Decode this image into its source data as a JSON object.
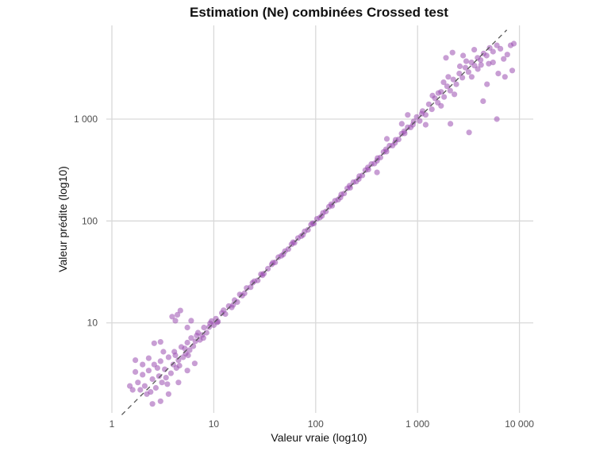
{
  "colors": {
    "point": "#9a4fb0",
    "identity_line": "#555555",
    "grid": "#d9d9d9",
    "text": "#111111",
    "tick_text": "#4d4d4d"
  },
  "chart_data": {
    "type": "scatter",
    "title": "Estimation (Ne) combinées Crossed test",
    "xlabel": "Valeur vraie (log10)",
    "ylabel": "Valeur prédite (log10)",
    "xscale": "log10",
    "yscale": "log10",
    "xlim": [
      1,
      10000
    ],
    "ylim": [
      1.5,
      10000
    ],
    "x_ticks": [
      1,
      10,
      100,
      1000,
      10000
    ],
    "x_tick_labels": [
      "1",
      "10",
      "100",
      "1 000",
      "10 000"
    ],
    "y_ticks": [
      10,
      100,
      1000
    ],
    "y_tick_labels": [
      "10",
      "100",
      "1 000"
    ],
    "grid": true,
    "legend": "none",
    "reference_line": {
      "label": "",
      "style": "dashed",
      "slope": 1,
      "intercept": 0
    },
    "series": [
      {
        "name": "",
        "point_alpha": 0.55,
        "points": [
          [
            1.6,
            2.2
          ],
          [
            1.8,
            2.6
          ],
          [
            2.0,
            3.1
          ],
          [
            2.1,
            2.4
          ],
          [
            2.2,
            2.0
          ],
          [
            2.3,
            3.4
          ],
          [
            2.5,
            2.8
          ],
          [
            2.6,
            3.9
          ],
          [
            2.7,
            2.3
          ],
          [
            2.9,
            3.0
          ],
          [
            3.0,
            4.2
          ],
          [
            3.1,
            2.6
          ],
          [
            3.3,
            3.5
          ],
          [
            3.4,
            2.9
          ],
          [
            3.6,
            4.6
          ],
          [
            3.8,
            3.2
          ],
          [
            4.0,
            3.9
          ],
          [
            4.1,
            5.2
          ],
          [
            4.3,
            3.6
          ],
          [
            4.5,
            4.3
          ],
          [
            4.8,
            5.8
          ],
          [
            5.0,
            4.6
          ],
          [
            5.3,
            5.0
          ],
          [
            5.5,
            6.4
          ],
          [
            5.8,
            5.4
          ],
          [
            6.0,
            7.1
          ],
          [
            6.3,
            5.9
          ],
          [
            6.6,
            6.6
          ],
          [
            7.0,
            8.0
          ],
          [
            7.3,
            6.8
          ],
          [
            7.7,
            7.6
          ],
          [
            8.0,
            9.0
          ],
          [
            8.5,
            8.0
          ],
          [
            9.0,
            9.1
          ],
          [
            9.5,
            10.4
          ],
          [
            10,
            9.5
          ],
          [
            10.5,
            11.0
          ],
          [
            11,
            10.3
          ],
          [
            12,
            12.5
          ],
          [
            13,
            12.2
          ],
          [
            14,
            14.6
          ],
          [
            15,
            14.2
          ],
          [
            16,
            16.7
          ],
          [
            17,
            16.0
          ],
          [
            18,
            19.0
          ],
          [
            20,
            19.5
          ],
          [
            21,
            22.0
          ],
          [
            23,
            22.4
          ],
          [
            25,
            25.6
          ],
          [
            27,
            26.1
          ],
          [
            29,
            30.0
          ],
          [
            31,
            30.4
          ],
          [
            34,
            34.0
          ],
          [
            37,
            37.5
          ],
          [
            40,
            39.2
          ],
          [
            43,
            44.0
          ],
          [
            46,
            45.5
          ],
          [
            50,
            50.6
          ],
          [
            54,
            53.0
          ],
          [
            58,
            59.0
          ],
          [
            62,
            61.0
          ],
          [
            67,
            68.0
          ],
          [
            72,
            71.0
          ],
          [
            78,
            79.0
          ],
          [
            84,
            82.0
          ],
          [
            90,
            92.0
          ],
          [
            96,
            94.5
          ],
          [
            103,
            105.0
          ],
          [
            110,
            108.0
          ],
          [
            118,
            120.0
          ],
          [
            126,
            124.0
          ],
          [
            135,
            138.0
          ],
          [
            145,
            141.0
          ],
          [
            155,
            158.0
          ],
          [
            166,
            162.0
          ],
          [
            178,
            182.0
          ],
          [
            190,
            186.0
          ],
          [
            204,
            209.0
          ],
          [
            218,
            212.0
          ],
          [
            234,
            240.0
          ],
          [
            250,
            244.0
          ],
          [
            268,
            275.0
          ],
          [
            287,
            280.0
          ],
          [
            307,
            315.0
          ],
          [
            329,
            320.0
          ],
          [
            352,
            362.0
          ],
          [
            377,
            366.0
          ],
          [
            404,
            414.0
          ],
          [
            432,
            420.0
          ],
          [
            463,
            476.0
          ],
          [
            495,
            480.0
          ],
          [
            530,
            548.0
          ],
          [
            568,
            550.0
          ],
          [
            608,
            626.0
          ],
          [
            651,
            632.0
          ],
          [
            697,
            720.0
          ],
          [
            746,
            725.0
          ],
          [
            799,
            830.0
          ],
          [
            855,
            830.0
          ],
          [
            916,
            950.0
          ],
          [
            980,
            1050.0
          ],
          [
            1050,
            960.0
          ],
          [
            1120,
            1200.0
          ],
          [
            1200,
            1100.0
          ],
          [
            1290,
            1400.0
          ],
          [
            1380,
            1250.0
          ],
          [
            1480,
            1600.0
          ],
          [
            1580,
            1450.0
          ],
          [
            1700,
            1850.0
          ],
          [
            1820,
            1650.0
          ],
          [
            1950,
            2100.0
          ],
          [
            2090,
            1900.0
          ],
          [
            2240,
            2450.0
          ],
          [
            2400,
            2200.0
          ],
          [
            2570,
            2800.0
          ],
          [
            2750,
            2550.0
          ],
          [
            2950,
            3200.0
          ],
          [
            3160,
            2900.0
          ],
          [
            3380,
            3600.0
          ],
          [
            3620,
            3350.0
          ],
          [
            3880,
            4000.0
          ],
          [
            4150,
            3800.0
          ],
          [
            4450,
            4400.0
          ],
          [
            4760,
            4200.0
          ],
          [
            5100,
            5000.0
          ],
          [
            5500,
            4600.0
          ],
          [
            6000,
            5300.0
          ],
          [
            6500,
            4900.0
          ],
          [
            7000,
            3900.0
          ],
          [
            7600,
            4300.0
          ],
          [
            8200,
            5300.0
          ],
          [
            8800,
            5500.0
          ],
          [
            1.5,
            2.4
          ],
          [
            1.7,
            3.3
          ],
          [
            1.9,
            2.2
          ],
          [
            2.4,
            2.1
          ],
          [
            2.8,
            3.6
          ],
          [
            3.5,
            2.5
          ],
          [
            4.2,
            4.8
          ],
          [
            4.6,
            3.8
          ],
          [
            5.2,
            5.6
          ],
          [
            5.6,
            4.8
          ],
          [
            6.8,
            7.5
          ],
          [
            7.9,
            7.1
          ],
          [
            9.2,
            9.9
          ],
          [
            10.8,
            10.1
          ],
          [
            12.5,
            13.3
          ],
          [
            15.5,
            15.0
          ],
          [
            19,
            18.5
          ],
          [
            24,
            24.7
          ],
          [
            30,
            29.3
          ],
          [
            38,
            39.0
          ],
          [
            48,
            47.0
          ],
          [
            60,
            61.8
          ],
          [
            75,
            73.0
          ],
          [
            93,
            95.0
          ],
          [
            115,
            112.0
          ],
          [
            142,
            146.0
          ],
          [
            175,
            170.0
          ],
          [
            215,
            222.0
          ],
          [
            265,
            258.0
          ],
          [
            325,
            335.0
          ],
          [
            400,
            390.0
          ],
          [
            490,
            505.0
          ],
          [
            600,
            585.0
          ],
          [
            740,
            760.0
          ],
          [
            900,
            880.0
          ],
          [
            1100,
            1130.0
          ],
          [
            1.7,
            4.3
          ],
          [
            2.0,
            3.9
          ],
          [
            2.3,
            4.5
          ],
          [
            2.6,
            6.3
          ],
          [
            3.0,
            6.5
          ],
          [
            3.2,
            5.2
          ],
          [
            3.9,
            11.5
          ],
          [
            4.4,
            12.0
          ],
          [
            4.7,
            13.2
          ],
          [
            4.2,
            10.5
          ],
          [
            5.5,
            9.0
          ],
          [
            6.0,
            10.5
          ],
          [
            2.5,
            1.6
          ],
          [
            3.0,
            1.7
          ],
          [
            3.6,
            2.0
          ],
          [
            4.5,
            2.6
          ],
          [
            5.5,
            3.4
          ],
          [
            6.5,
            4.0
          ],
          [
            1600,
            1800.0
          ],
          [
            1800,
            2300.0
          ],
          [
            2000,
            2600.0
          ],
          [
            2300,
            1750.0
          ],
          [
            2600,
            3300.0
          ],
          [
            3000,
            3700.0
          ],
          [
            3400,
            2600.0
          ],
          [
            3900,
            3100.0
          ],
          [
            4400,
            1500.0
          ],
          [
            5000,
            3500.0
          ],
          [
            6000,
            1000.0
          ],
          [
            3200,
            740.0
          ],
          [
            2100,
            900.0
          ],
          [
            1400,
            1700.0
          ],
          [
            1700,
            1350.0
          ],
          [
            1200,
            880.0
          ],
          [
            800,
            1100.0
          ],
          [
            700,
            900.0
          ],
          [
            500,
            640.0
          ],
          [
            400,
            300.0
          ],
          [
            1900,
            4000.0
          ],
          [
            2200,
            4500.0
          ],
          [
            2800,
            4200.0
          ],
          [
            3600,
            4800.0
          ],
          [
            4200,
            3400.0
          ],
          [
            5500,
            3600.0
          ],
          [
            6200,
            2800.0
          ],
          [
            7200,
            2600.0
          ],
          [
            8500,
            3000.0
          ],
          [
            4800,
            2200.0
          ]
        ]
      }
    ]
  }
}
